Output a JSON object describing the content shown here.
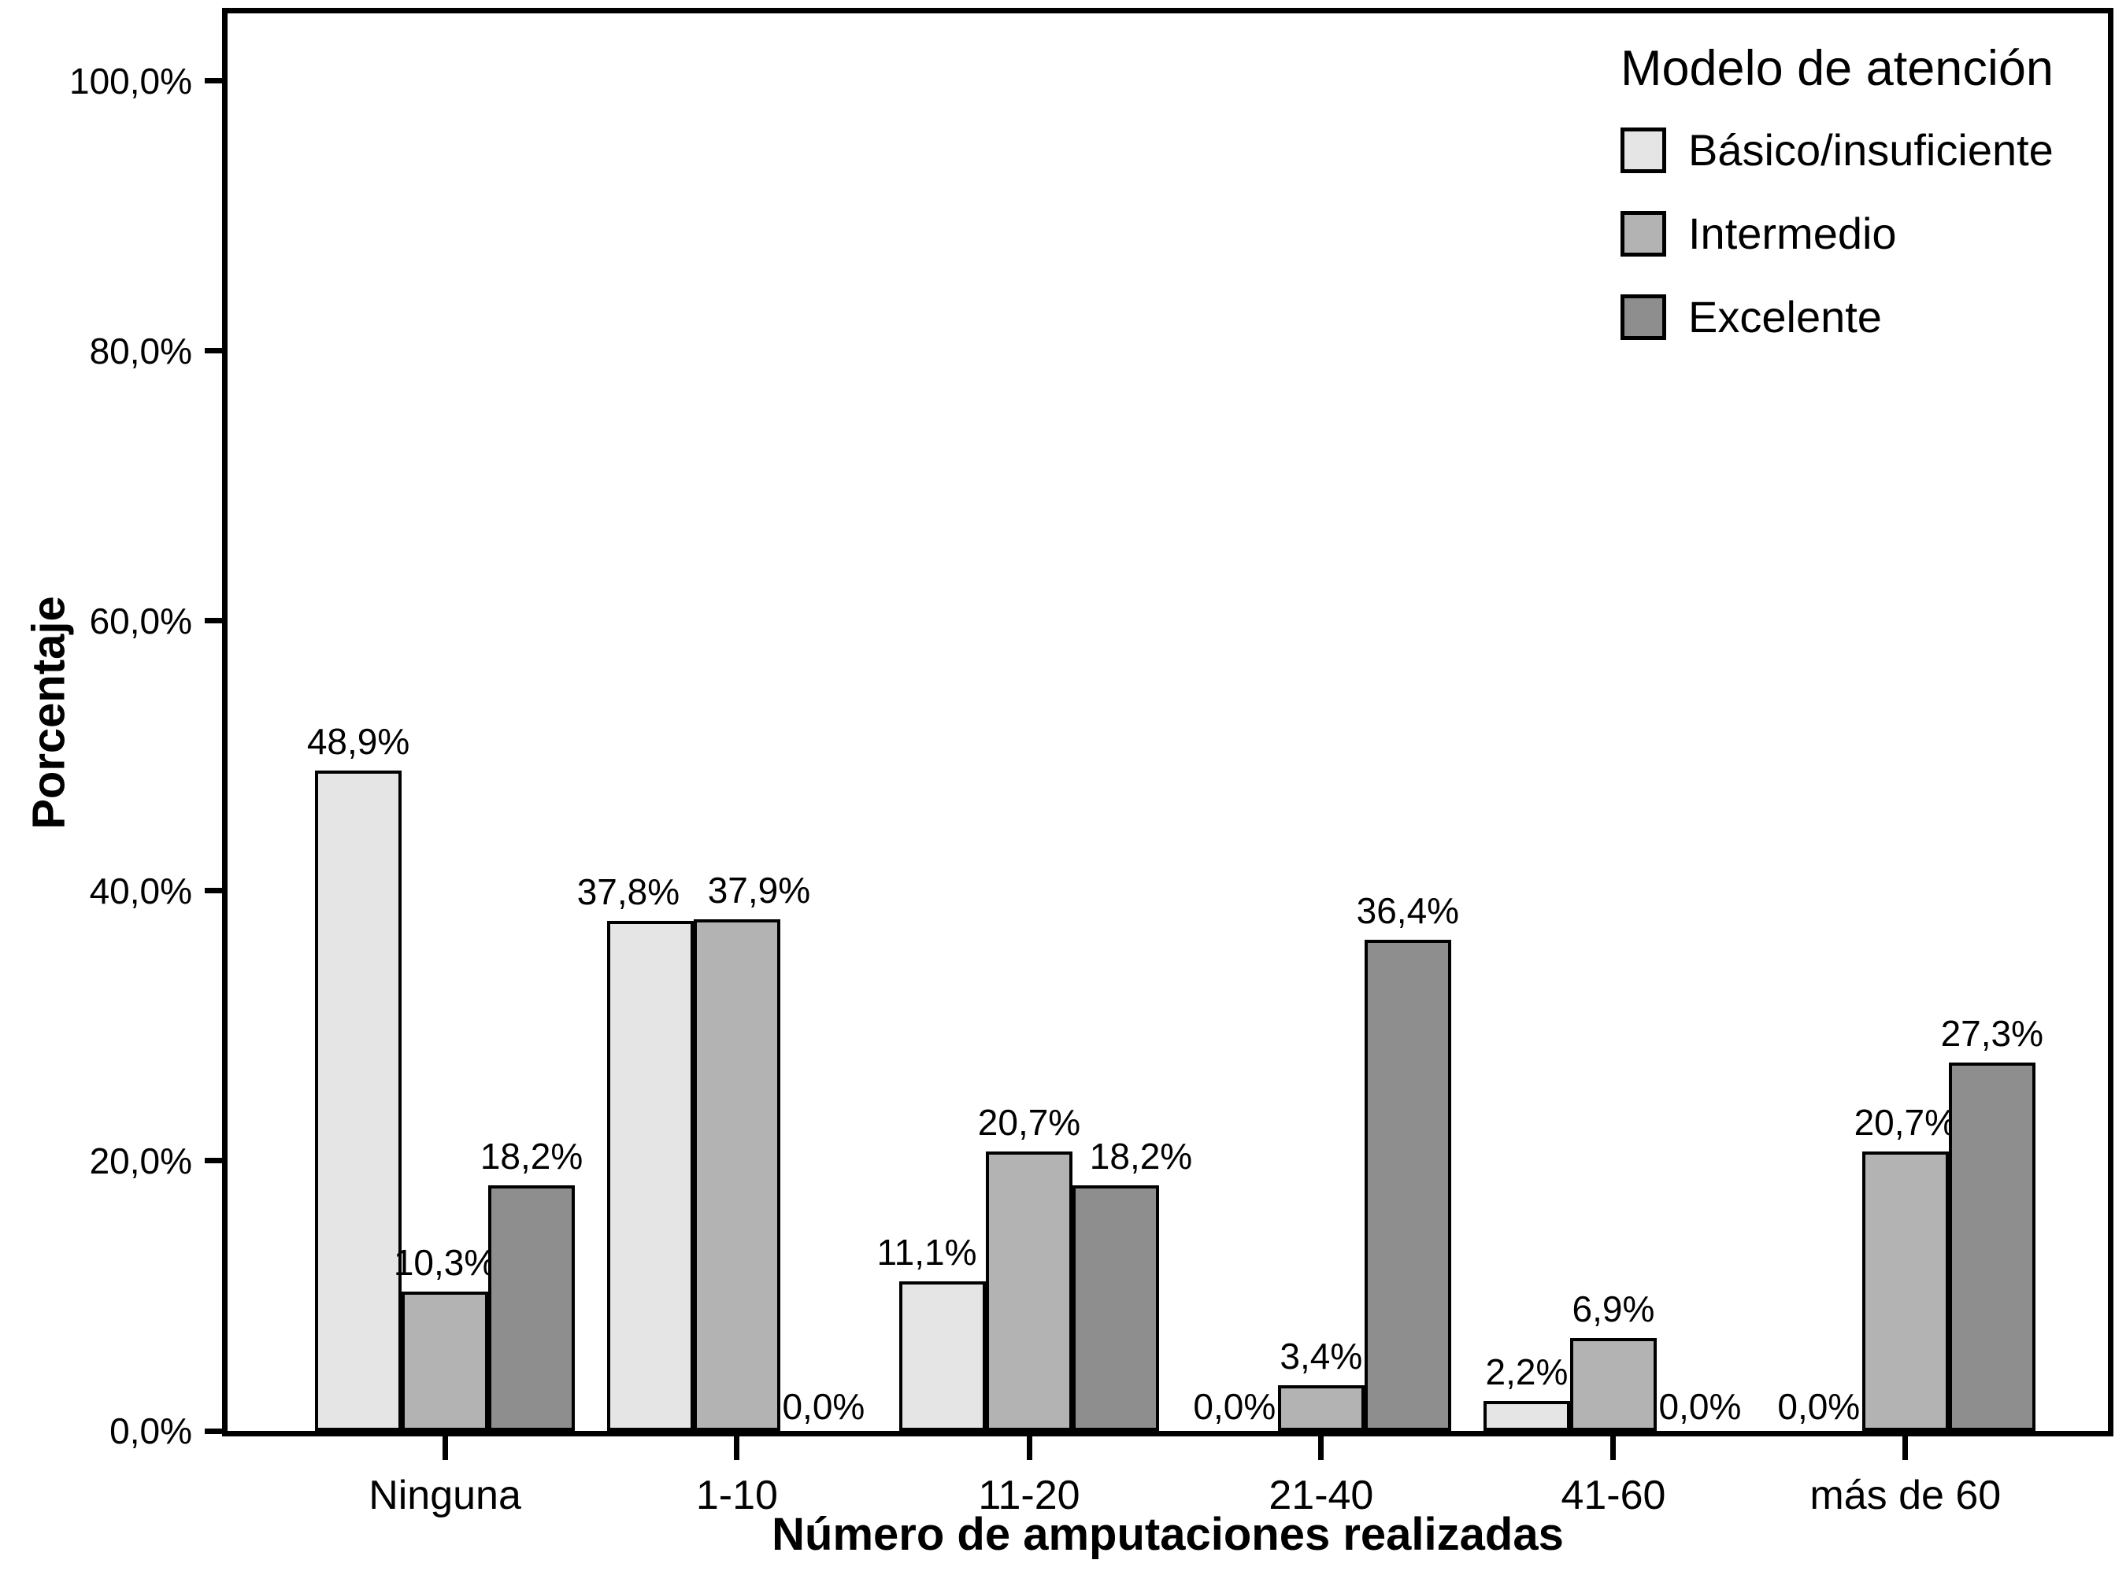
{
  "chart_data": {
    "type": "bar",
    "title": "",
    "xlabel": "Número de amputaciones realizadas",
    "ylabel": "Porcentaje",
    "categories": [
      "Ninguna",
      "1-10",
      "11-20",
      "21-40",
      "41-60",
      "más de 60"
    ],
    "series": [
      {
        "name": "Básico/insuficiente",
        "color": "#E5E5E5",
        "values": [
          48.9,
          37.8,
          11.1,
          0.0,
          2.2,
          0.0
        ],
        "labels": [
          "48,9%",
          "37,8%",
          "11,1%",
          "0,0%",
          "2,2%",
          "0,0%"
        ],
        "label_dx": [
          0,
          -28,
          -20,
          0,
          0,
          0
        ]
      },
      {
        "name": "Intermedio",
        "color": "#B3B3B3",
        "values": [
          10.3,
          37.9,
          20.7,
          3.4,
          6.9,
          20.7
        ],
        "labels": [
          "10,3%",
          "37,9%",
          "20,7%",
          "3,4%",
          "6,9%",
          "20,7%"
        ],
        "label_dx": [
          0,
          28,
          0,
          0,
          0,
          0
        ]
      },
      {
        "name": "Excelente",
        "color": "#8E8E8E",
        "values": [
          18.2,
          0.0,
          18.2,
          36.4,
          0.0,
          27.3
        ],
        "labels": [
          "18,2%",
          "0,0%",
          "18,2%",
          "36,4%",
          "0,0%",
          "27,3%"
        ],
        "label_dx": [
          0,
          0,
          32,
          0,
          0,
          0
        ]
      }
    ],
    "yticks": [
      {
        "value": 0,
        "label": "0,0%"
      },
      {
        "value": 20,
        "label": "20,0%"
      },
      {
        "value": 40,
        "label": "40,0%"
      },
      {
        "value": 60,
        "label": "60,0%"
      },
      {
        "value": 80,
        "label": "80,0%"
      },
      {
        "value": 100,
        "label": "100,0%"
      }
    ],
    "ylim": [
      0,
      105
    ],
    "grid": false,
    "legend_title": "Modelo de atención",
    "legend_position": "top-right"
  }
}
